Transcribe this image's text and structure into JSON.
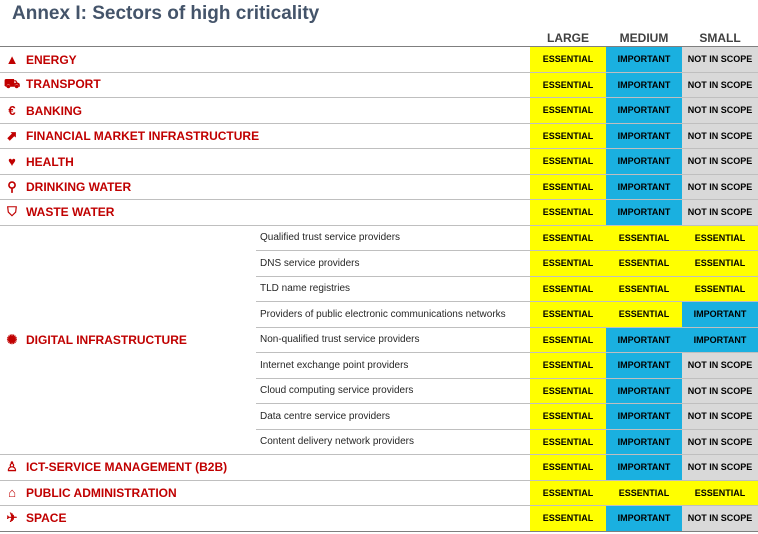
{
  "title": "Annex I: Sectors of high criticality",
  "headers": {
    "large": "LARGE",
    "medium": "MEDIUM",
    "small": "SMALL"
  },
  "rows": [
    {
      "sector": "ENERGY",
      "icon": "warning-icon",
      "glyph": "▲",
      "levels": [
        "ESSENTIAL",
        "IMPORTANT",
        "NOT IN SCOPE"
      ]
    },
    {
      "sector": "TRANSPORT",
      "icon": "truck-icon",
      "glyph": "⛟",
      "levels": [
        "ESSENTIAL",
        "IMPORTANT",
        "NOT IN SCOPE"
      ]
    },
    {
      "sector": "BANKING",
      "icon": "euro-icon",
      "glyph": "€",
      "levels": [
        "ESSENTIAL",
        "IMPORTANT",
        "NOT IN SCOPE"
      ]
    },
    {
      "sector": "FINANCIAL MARKET INFRASTRUCTURE",
      "icon": "chart-icon",
      "glyph": "⬈",
      "levels": [
        "ESSENTIAL",
        "IMPORTANT",
        "NOT IN SCOPE"
      ]
    },
    {
      "sector": "HEALTH",
      "icon": "heart-icon",
      "glyph": "♥",
      "levels": [
        "ESSENTIAL",
        "IMPORTANT",
        "NOT IN SCOPE"
      ]
    },
    {
      "sector": "DRINKING WATER",
      "icon": "tap-icon",
      "glyph": "⚲",
      "levels": [
        "ESSENTIAL",
        "IMPORTANT",
        "NOT IN SCOPE"
      ]
    },
    {
      "sector": "WASTE WATER",
      "icon": "pipe-icon",
      "glyph": "⛉",
      "levels": [
        "ESSENTIAL",
        "IMPORTANT",
        "NOT IN SCOPE"
      ]
    }
  ],
  "digital": {
    "sector": "DIGITAL INFRASTRUCTURE",
    "icon": "network-icon",
    "glyph": "✺",
    "subs": [
      {
        "label": "Qualified trust service providers",
        "levels": [
          "ESSENTIAL",
          "ESSENTIAL",
          "ESSENTIAL"
        ]
      },
      {
        "label": "DNS service providers",
        "levels": [
          "ESSENTIAL",
          "ESSENTIAL",
          "ESSENTIAL"
        ]
      },
      {
        "label": "TLD name registries",
        "levels": [
          "ESSENTIAL",
          "ESSENTIAL",
          "ESSENTIAL"
        ]
      },
      {
        "label": "Providers of public electronic communications networks",
        "levels": [
          "ESSENTIAL",
          "ESSENTIAL",
          "IMPORTANT"
        ]
      },
      {
        "label": "Non-qualified trust service providers",
        "levels": [
          "ESSENTIAL",
          "IMPORTANT",
          "IMPORTANT"
        ]
      },
      {
        "label": "Internet exchange point providers",
        "levels": [
          "ESSENTIAL",
          "IMPORTANT",
          "NOT IN SCOPE"
        ]
      },
      {
        "label": "Cloud computing service providers",
        "levels": [
          "ESSENTIAL",
          "IMPORTANT",
          "NOT IN SCOPE"
        ]
      },
      {
        "label": "Data centre service providers",
        "levels": [
          "ESSENTIAL",
          "IMPORTANT",
          "NOT IN SCOPE"
        ]
      },
      {
        "label": "Content delivery network providers",
        "levels": [
          "ESSENTIAL",
          "IMPORTANT",
          "NOT IN SCOPE"
        ]
      }
    ]
  },
  "tail_rows": [
    {
      "sector": "ICT-SERVICE MANAGEMENT (B2B)",
      "icon": "user-lock-icon",
      "glyph": "♙",
      "levels": [
        "ESSENTIAL",
        "IMPORTANT",
        "NOT IN SCOPE"
      ]
    },
    {
      "sector": "PUBLIC ADMINISTRATION",
      "icon": "building-icon",
      "glyph": "⌂",
      "levels": [
        "ESSENTIAL",
        "ESSENTIAL",
        "ESSENTIAL"
      ]
    },
    {
      "sector": "SPACE",
      "icon": "satellite-icon",
      "glyph": "✈",
      "levels": [
        "ESSENTIAL",
        "IMPORTANT",
        "NOT IN SCOPE"
      ]
    }
  ]
}
